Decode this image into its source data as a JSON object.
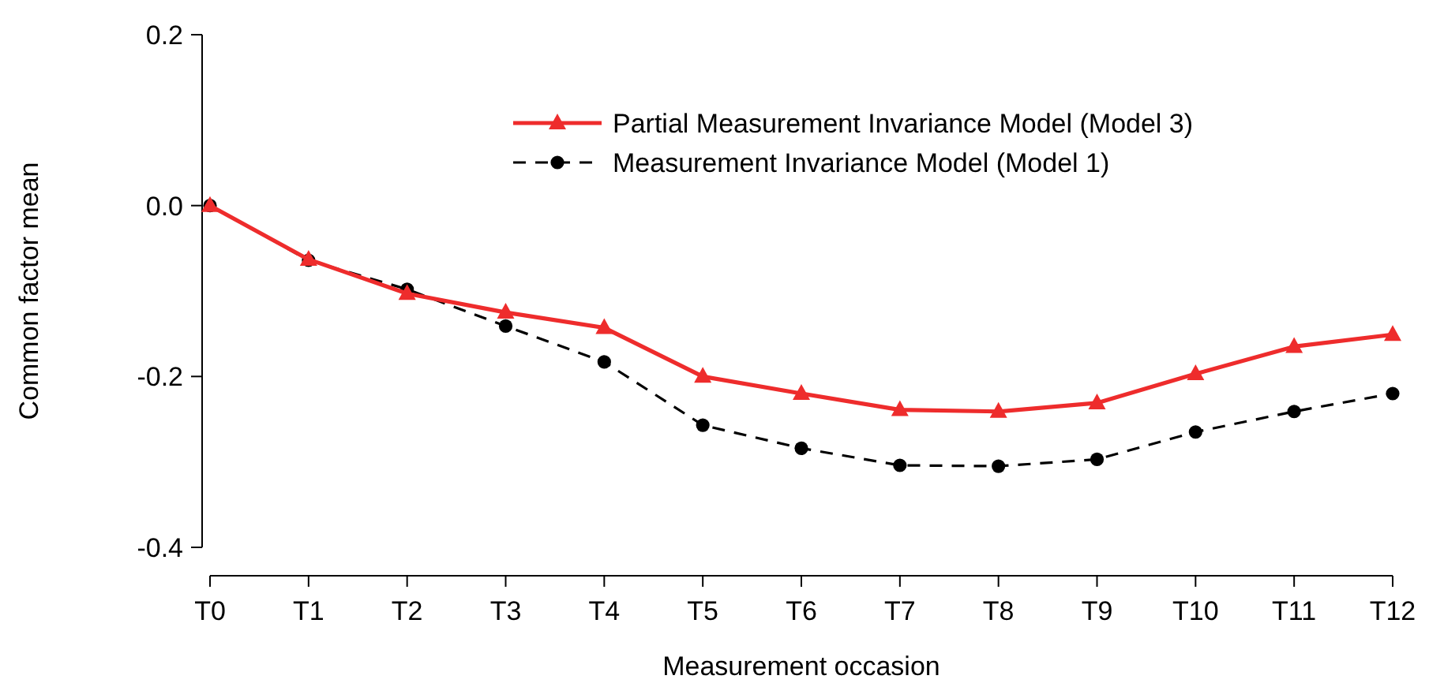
{
  "chart_data": {
    "type": "line",
    "xlabel": "Measurement occasion",
    "ylabel": "Common factor mean",
    "categories": [
      "T0",
      "T1",
      "T2",
      "T3",
      "T4",
      "T5",
      "T6",
      "T7",
      "T8",
      "T9",
      "T10",
      "T11",
      "T12"
    ],
    "ylim": [
      -0.4,
      0.2
    ],
    "yticks": [
      {
        "value": -0.4,
        "label": "-0.4"
      },
      {
        "value": -0.2,
        "label": "-0.2"
      },
      {
        "value": 0,
        "label": "0.0"
      },
      {
        "value": 0.2,
        "label": "0.2"
      }
    ],
    "grid": false,
    "legend": "top right",
    "series": [
      {
        "name": "Partial Measurement Invariance Model (Model 3)",
        "color": "#ee2c2c",
        "marker": "triangle",
        "line_style": "solid",
        "values": [
          0,
          -0.063,
          -0.103,
          -0.125,
          -0.143,
          -0.2,
          -0.22,
          -0.239,
          -0.241,
          -0.231,
          -0.197,
          -0.165,
          -0.151
        ]
      },
      {
        "name": "Measurement Invariance Model (Model 1)",
        "color": "#000000",
        "marker": "circle",
        "line_style": "dashed",
        "values": [
          0,
          -0.064,
          -0.098,
          -0.141,
          -0.183,
          -0.257,
          -0.284,
          -0.304,
          -0.305,
          -0.297,
          -0.265,
          -0.241,
          -0.22
        ]
      }
    ]
  }
}
